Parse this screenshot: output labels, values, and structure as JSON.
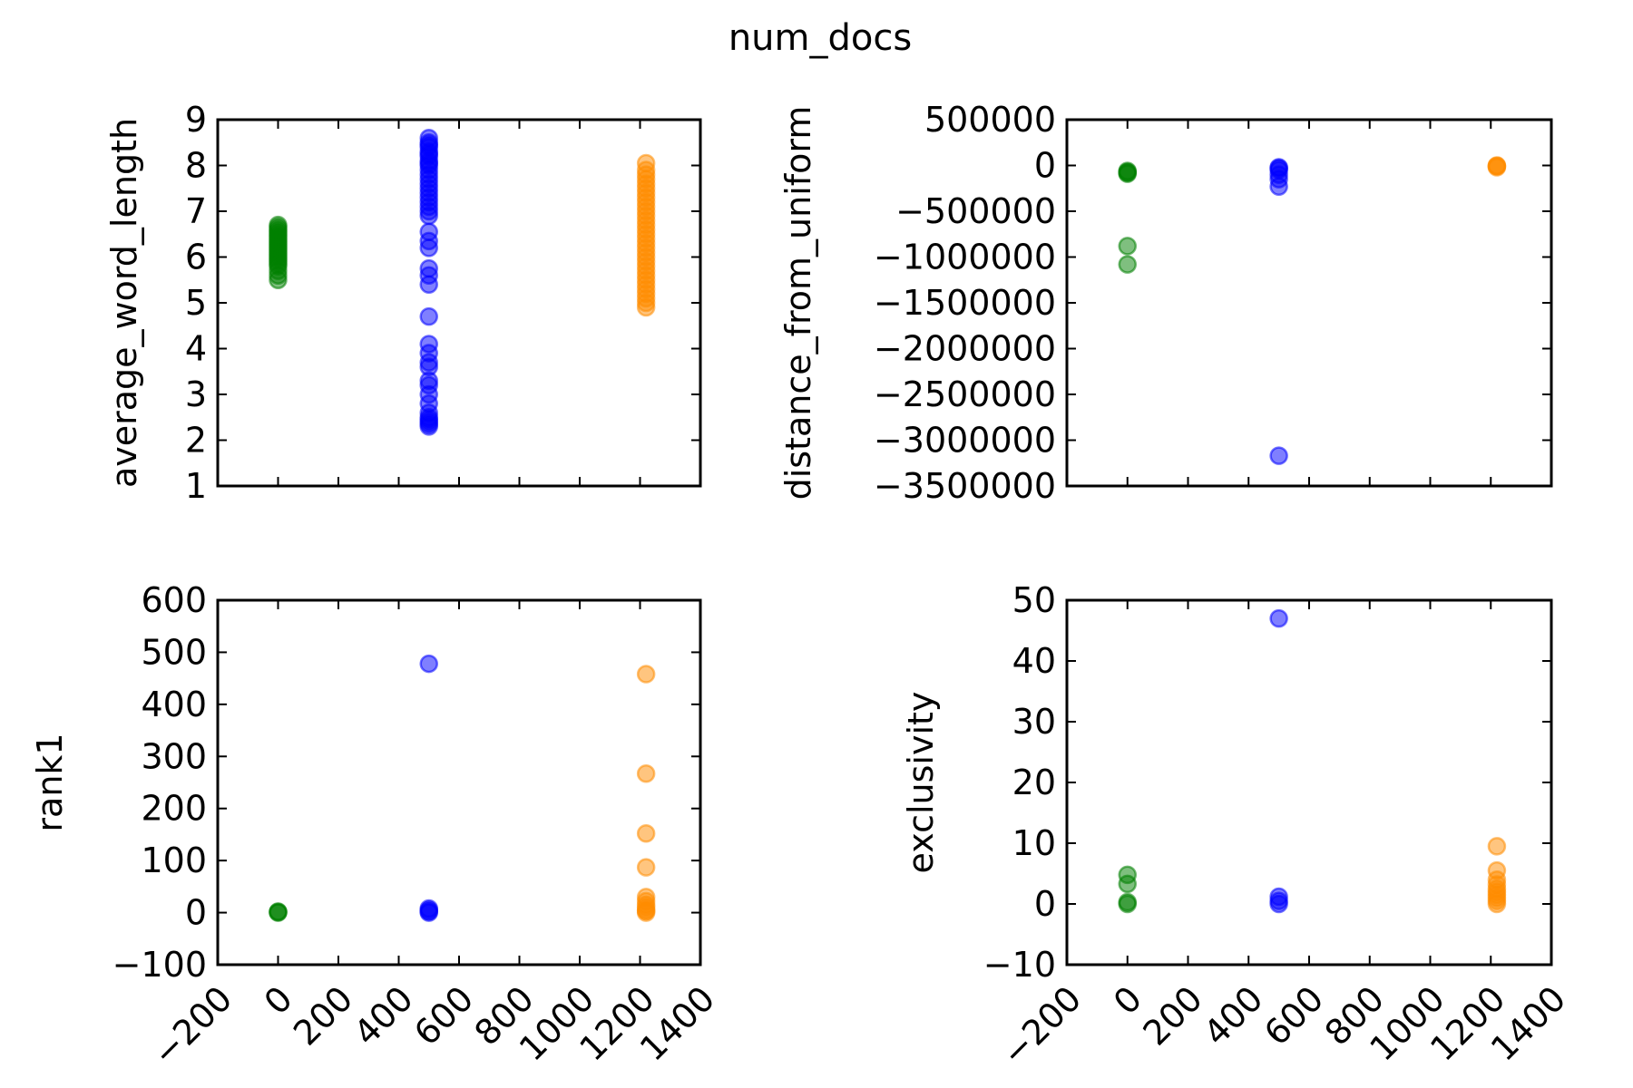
{
  "figure": {
    "title": "num_docs"
  },
  "chart_data": [
    {
      "type": "scatter",
      "ylabel": "average_word_length",
      "xlim": [
        -200,
        1400
      ],
      "ylim": [
        1,
        9
      ],
      "xticks": [
        -200,
        0,
        200,
        400,
        600,
        800,
        1000,
        1200,
        1400
      ],
      "xtick_labels": [
        "−200",
        "0",
        "200",
        "400",
        "600",
        "800",
        "1000",
        "1200",
        "1400"
      ],
      "yticks": [
        1,
        2,
        3,
        4,
        5,
        6,
        7,
        8,
        9
      ],
      "ytick_labels": [
        "1",
        "2",
        "3",
        "4",
        "5",
        "6",
        "7",
        "8",
        "9"
      ],
      "show_xtick_labels": false,
      "series": [
        {
          "color": "#008000",
          "x": [
            0,
            0,
            0,
            0,
            0,
            0,
            0,
            0,
            0,
            0,
            0,
            0,
            0,
            0,
            0,
            0,
            0,
            0,
            0,
            0,
            0,
            0
          ],
          "y": [
            5.5,
            5.6,
            5.7,
            5.8,
            5.85,
            5.9,
            5.95,
            6.0,
            6.05,
            6.1,
            6.15,
            6.2,
            6.25,
            6.3,
            6.35,
            6.4,
            6.45,
            6.5,
            6.55,
            6.6,
            6.65,
            6.7
          ]
        },
        {
          "color": "#0000ff",
          "x": [
            500,
            500,
            500,
            500,
            500,
            500,
            500,
            500,
            500,
            500,
            500,
            500,
            500,
            500,
            500,
            500,
            500,
            500,
            500,
            500,
            500,
            500,
            500,
            500,
            500,
            500,
            500,
            500,
            500,
            500,
            500,
            500,
            500,
            500,
            500,
            500,
            500,
            500,
            500,
            500,
            500,
            500
          ],
          "y": [
            2.3,
            2.35,
            2.4,
            2.45,
            2.5,
            2.6,
            2.8,
            3.0,
            3.2,
            3.3,
            3.6,
            3.7,
            3.9,
            4.1,
            4.7,
            5.4,
            5.6,
            5.75,
            6.2,
            6.35,
            6.55,
            6.9,
            7.0,
            7.1,
            7.2,
            7.3,
            7.4,
            7.5,
            7.6,
            7.7,
            7.8,
            7.9,
            8.0,
            8.05,
            8.1,
            8.2,
            8.25,
            8.3,
            8.4,
            8.45,
            8.5,
            8.6
          ]
        },
        {
          "color": "#ff8c00",
          "x": [
            1220,
            1220,
            1220,
            1220,
            1220,
            1220,
            1220,
            1220,
            1220,
            1220,
            1220,
            1220,
            1220,
            1220,
            1220,
            1220,
            1220,
            1220,
            1220,
            1220,
            1220,
            1220,
            1220,
            1220,
            1220,
            1220,
            1220,
            1220,
            1220,
            1220,
            1220,
            1220
          ],
          "y": [
            4.9,
            5.0,
            5.1,
            5.2,
            5.3,
            5.4,
            5.5,
            5.6,
            5.7,
            5.8,
            5.9,
            6.0,
            6.1,
            6.2,
            6.3,
            6.4,
            6.5,
            6.6,
            6.7,
            6.8,
            6.9,
            7.0,
            7.1,
            7.2,
            7.3,
            7.4,
            7.5,
            7.6,
            7.7,
            7.8,
            7.9,
            8.05
          ]
        }
      ]
    },
    {
      "type": "scatter",
      "ylabel": "distance_from_uniform",
      "xlim": [
        -200,
        1400
      ],
      "ylim": [
        -3500000,
        500000
      ],
      "xticks": [
        -200,
        0,
        200,
        400,
        600,
        800,
        1000,
        1200,
        1400
      ],
      "xtick_labels": [
        "−200",
        "0",
        "200",
        "400",
        "600",
        "800",
        "1000",
        "1200",
        "1400"
      ],
      "yticks": [
        -3500000,
        -3000000,
        -2500000,
        -2000000,
        -1500000,
        -1000000,
        -500000,
        0,
        500000
      ],
      "ytick_labels": [
        "−3500000",
        "−3000000",
        "−2500000",
        "−2000000",
        "−1500000",
        "−1000000",
        "−500000",
        "0",
        "500000"
      ],
      "show_xtick_labels": false,
      "series": [
        {
          "color": "#008000",
          "x": [
            0,
            0,
            0,
            0,
            0,
            0
          ],
          "y": [
            -60000,
            -70000,
            -80000,
            -90000,
            -880000,
            -1080000
          ]
        },
        {
          "color": "#0000ff",
          "x": [
            500,
            500,
            500,
            500,
            500,
            500,
            500
          ],
          "y": [
            -20000,
            -30000,
            -50000,
            -100000,
            -150000,
            -230000,
            -3170000
          ]
        },
        {
          "color": "#ff8c00",
          "x": [
            1220,
            1220,
            1220,
            1220
          ],
          "y": [
            0,
            -5000,
            -10000,
            -20000
          ]
        }
      ]
    },
    {
      "type": "scatter",
      "ylabel": "rank1",
      "xlim": [
        -200,
        1400
      ],
      "ylim": [
        -100,
        600
      ],
      "xticks": [
        -200,
        0,
        200,
        400,
        600,
        800,
        1000,
        1200,
        1400
      ],
      "xtick_labels": [
        "−200",
        "0",
        "200",
        "400",
        "600",
        "800",
        "1000",
        "1200",
        "1400"
      ],
      "yticks": [
        -100,
        0,
        100,
        200,
        300,
        400,
        500,
        600
      ],
      "ytick_labels": [
        "−100",
        "0",
        "100",
        "200",
        "300",
        "400",
        "500",
        "600"
      ],
      "show_xtick_labels": true,
      "series": [
        {
          "color": "#008000",
          "x": [
            0,
            0,
            0
          ],
          "y": [
            0,
            1,
            2
          ]
        },
        {
          "color": "#0000ff",
          "x": [
            500,
            500,
            500,
            500,
            500
          ],
          "y": [
            0,
            2,
            5,
            8,
            478
          ]
        },
        {
          "color": "#ff8c00",
          "x": [
            1220,
            1220,
            1220,
            1220,
            1220,
            1220,
            1220,
            1220,
            1220,
            1220,
            1220
          ],
          "y": [
            0,
            5,
            10,
            15,
            22,
            30,
            87,
            152,
            267,
            458,
            3
          ]
        }
      ]
    },
    {
      "type": "scatter",
      "ylabel": "exclusivity",
      "xlim": [
        -200,
        1400
      ],
      "ylim": [
        -10,
        50
      ],
      "xticks": [
        -200,
        0,
        200,
        400,
        600,
        800,
        1000,
        1200,
        1400
      ],
      "xtick_labels": [
        "−200",
        "0",
        "200",
        "400",
        "600",
        "800",
        "1000",
        "1200",
        "1400"
      ],
      "yticks": [
        -10,
        0,
        10,
        20,
        30,
        40,
        50
      ],
      "ytick_labels": [
        "−10",
        "0",
        "10",
        "20",
        "30",
        "40",
        "50"
      ],
      "show_xtick_labels": true,
      "series": [
        {
          "color": "#008000",
          "x": [
            0,
            0,
            0,
            0
          ],
          "y": [
            0,
            0.3,
            3.3,
            4.8
          ]
        },
        {
          "color": "#0000ff",
          "x": [
            500,
            500,
            500,
            500
          ],
          "y": [
            0,
            0.5,
            1.2,
            47
          ]
        },
        {
          "color": "#ff8c00",
          "x": [
            1220,
            1220,
            1220,
            1220,
            1220,
            1220,
            1220,
            1220,
            1220,
            1220
          ],
          "y": [
            0,
            0.5,
            1,
            1.5,
            2,
            2.5,
            3.2,
            4,
            5.5,
            9.5
          ]
        }
      ]
    }
  ]
}
